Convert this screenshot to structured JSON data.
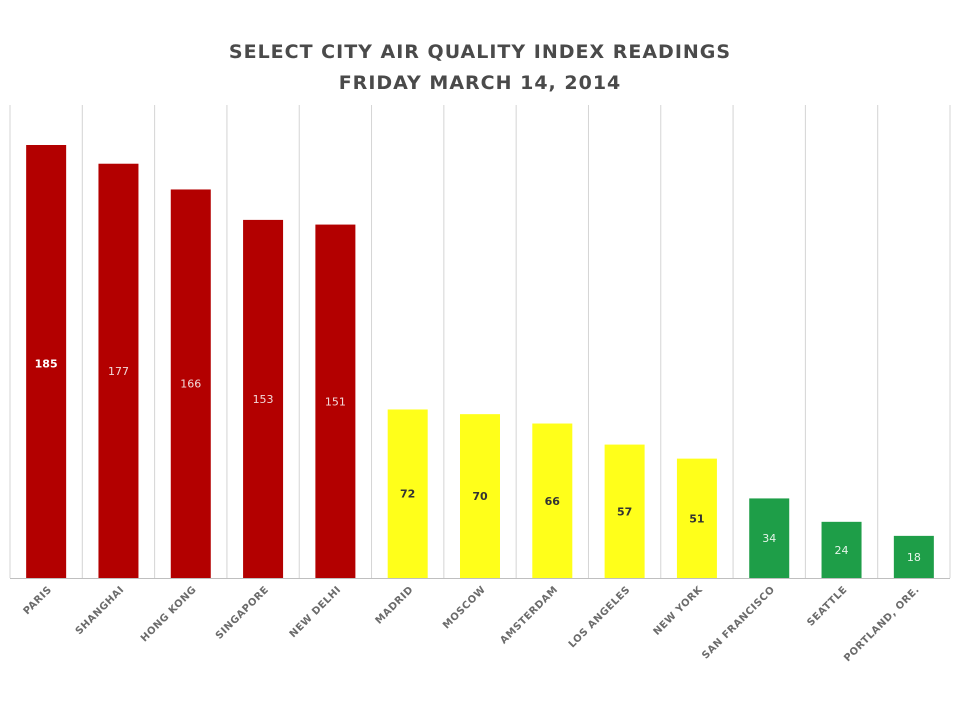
{
  "chart_data": {
    "type": "bar",
    "title": "SELECT CITY AIR QUALITY INDEX READINGS",
    "subtitle": "FRIDAY MARCH 14, 2014",
    "xlabel": "",
    "ylabel": "",
    "ylim": [
      0,
      200
    ],
    "grid": "vertical lines between categories",
    "legend": "none",
    "categories": [
      "PARIS",
      "SHANGHAI",
      "HONG KONG",
      "SINGAPORE",
      "NEW DELHI",
      "MADRID",
      "MOSCOW",
      "AMSTERDAM",
      "LOS ANGELES",
      "NEW YORK",
      "SAN FRANCISCO",
      "SEATTLE",
      "PORTLAND, ORE."
    ],
    "values": [
      185,
      177,
      166,
      153,
      151,
      72,
      70,
      66,
      57,
      51,
      34,
      24,
      18
    ],
    "data_labels": [
      "185",
      "177",
      "166",
      "153",
      "151",
      "72",
      "70",
      "66",
      "57",
      "51",
      "34",
      "24",
      "18"
    ],
    "bar_colors": [
      "#b30000",
      "#b30000",
      "#b30000",
      "#b30000",
      "#b30000",
      "#ffff1a",
      "#ffff1a",
      "#ffff1a",
      "#ffff1a",
      "#ffff1a",
      "#1e9e48",
      "#1e9e48",
      "#1e9e48"
    ],
    "label_colors": [
      "#ffffff",
      "#f2dada",
      "#f2dada",
      "#f2dada",
      "#f2dada",
      "#333333",
      "#333333",
      "#333333",
      "#333333",
      "#333333",
      "#e6f5ea",
      "#e6f5ea",
      "#e6f5ea"
    ],
    "colors": {
      "grid": "#d4d4d4",
      "axis": "#bfbfbf",
      "title": "#4a4a4a",
      "tick": "#6b6b6b"
    }
  }
}
